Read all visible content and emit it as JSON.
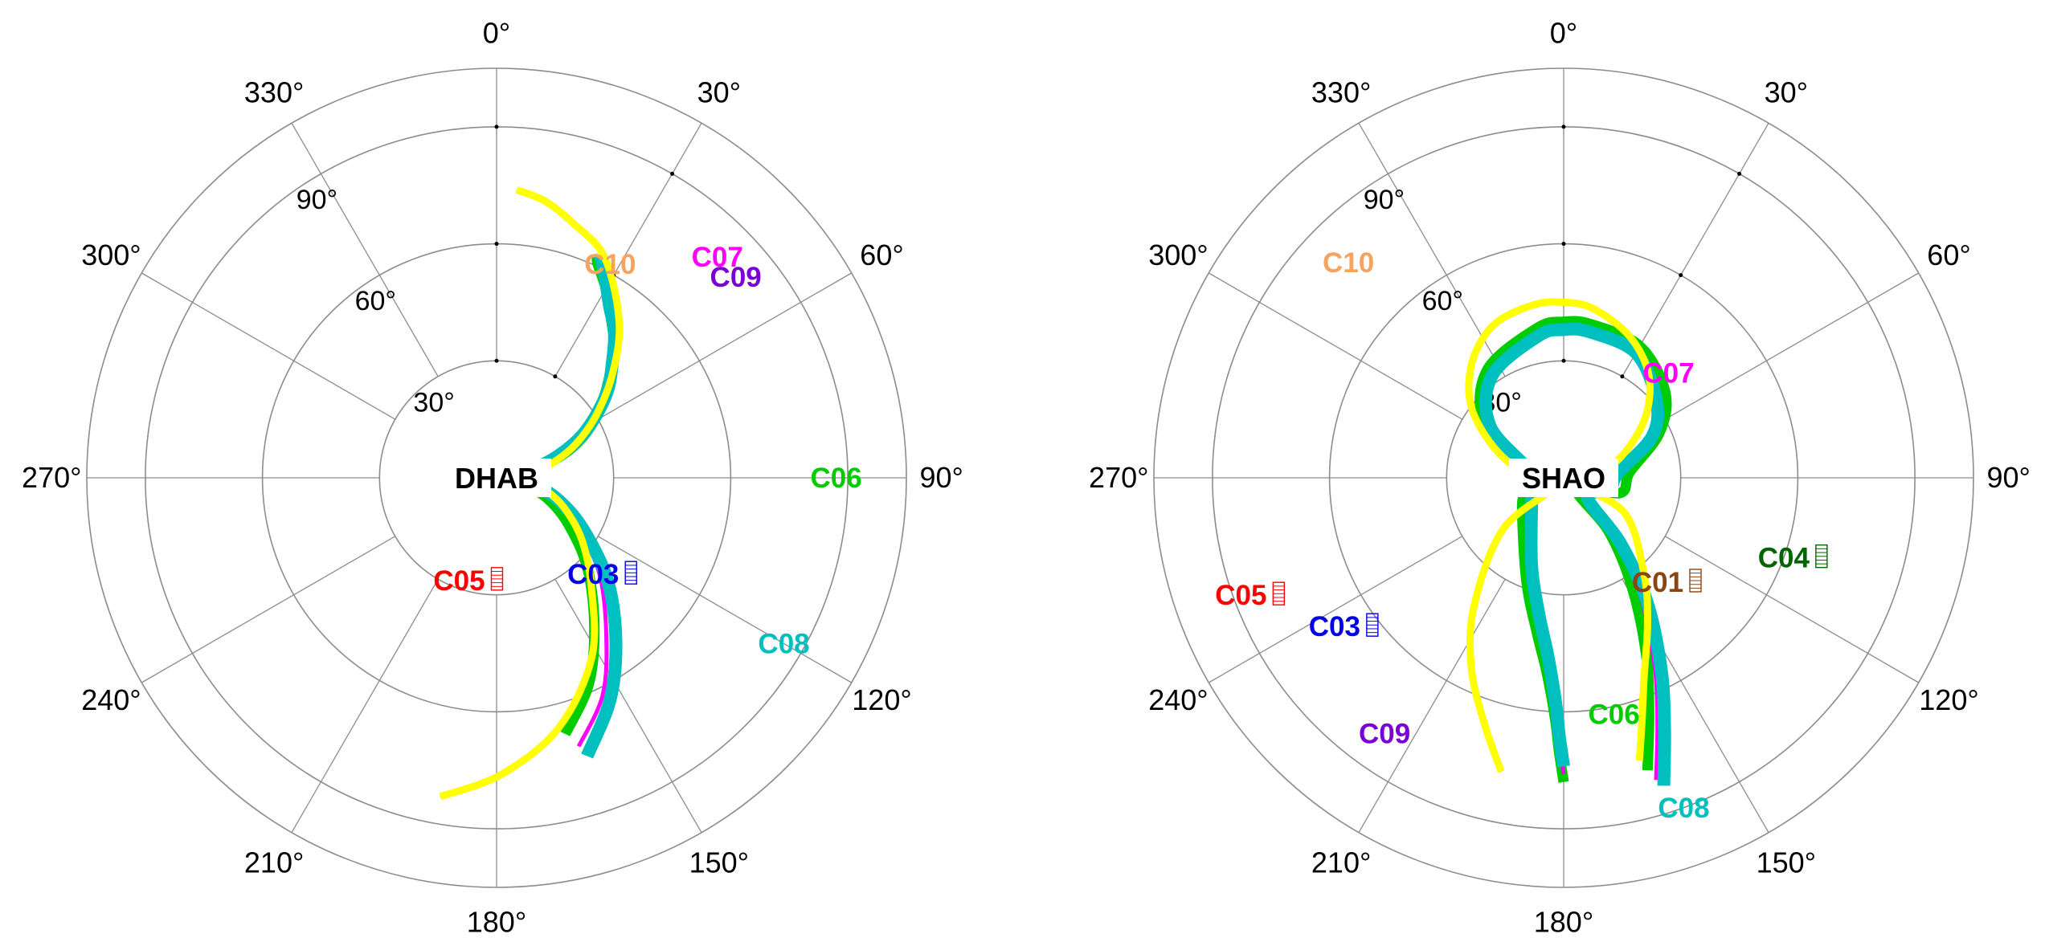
{
  "chart_data": [
    {
      "type": "polar-skyplot",
      "station": "DHAB",
      "angle_labels": [
        "0°",
        "30°",
        "60°",
        "90°",
        "120°",
        "150°",
        "180°",
        "210°",
        "240°",
        "270°",
        "300°",
        "330°"
      ],
      "radial_labels": [
        "30°",
        "60°",
        "90°"
      ],
      "satellites": [
        {
          "name": "C05",
          "color": "#ff0000",
          "position": {
            "az": 200,
            "el": 62
          },
          "marker": true
        },
        {
          "name": "C03",
          "color": "#0000e6",
          "position": {
            "az": 135,
            "el": 55
          },
          "marker": true
        },
        {
          "name": "C10",
          "color": "#f4a460",
          "label_at": {
            "az": 28,
            "el": 28
          }
        },
        {
          "name": "C09",
          "color": "#7b00d6",
          "label_at": {
            "az": 50,
            "el": 10
          }
        },
        {
          "name": "C07",
          "color": "#ff00ff",
          "label_at": {
            "az": 45,
            "el": 10
          }
        },
        {
          "name": "C06",
          "color": "#00cc00",
          "label_at": {
            "az": 90,
            "el": 3
          }
        },
        {
          "name": "C08",
          "color": "#00bfbf",
          "label_at": {
            "az": 120,
            "el": 5
          }
        }
      ],
      "traces": [
        {
          "name": "C06",
          "color": "#00cc00",
          "points": [
            [
              165,
              22
            ],
            [
              156,
              32
            ],
            [
              147,
              44
            ],
            [
              135,
              57
            ],
            [
              123,
              68
            ],
            [
              112,
              76
            ],
            [
              104,
              83
            ],
            [
              96,
              89
            ],
            [
              90,
              90
            ],
            [
              87,
              90
            ],
            [
              84,
              88
            ],
            [
              80,
              83
            ],
            [
              75,
              77
            ],
            [
              69,
              70
            ],
            [
              63,
              64
            ],
            [
              56,
              58
            ],
            [
              49,
              52
            ],
            [
              42,
              45
            ],
            [
              36,
              40
            ],
            [
              30,
              34
            ],
            [
              25,
              29
            ],
            [
              25,
              28
            ]
          ]
        },
        {
          "name": "C07",
          "color": "#ff00ff",
          "points": [
            [
              163,
              18
            ],
            [
              154,
              28
            ],
            [
              145,
              41
            ],
            [
              133,
              54
            ],
            [
              121,
              66
            ],
            [
              110,
              75
            ],
            [
              102,
              82
            ],
            [
              94,
              88
            ],
            [
              89,
              90
            ],
            [
              85,
              89
            ],
            [
              82,
              86
            ],
            [
              78,
              81
            ],
            [
              73,
              75
            ],
            [
              67,
              68
            ],
            [
              61,
              62
            ],
            [
              54,
              56
            ],
            [
              47,
              50
            ],
            [
              40,
              43
            ],
            [
              34,
              38
            ],
            [
              29,
              32
            ],
            [
              25,
              27
            ]
          ]
        },
        {
          "name": "C08",
          "color": "#00bfbf",
          "points": [
            [
              162,
              15
            ],
            [
              153,
              26
            ],
            [
              144,
              38
            ],
            [
              133,
              51
            ],
            [
              121,
              64
            ],
            [
              110,
              73
            ],
            [
              101,
              80
            ],
            [
              94,
              87
            ],
            [
              88,
              90
            ],
            [
              84,
              89
            ],
            [
              80,
              85
            ],
            [
              76,
              80
            ],
            [
              71,
              74
            ],
            [
              65,
              67
            ],
            [
              59,
              61
            ],
            [
              52,
              54
            ],
            [
              45,
              48
            ],
            [
              39,
              42
            ],
            [
              33,
              37
            ],
            [
              28,
              31
            ],
            [
              25,
              27
            ]
          ]
        },
        {
          "name": "C09",
          "color": "#7b00d6",
          "points": [
            [
              190,
              7
            ],
            [
              179,
              14
            ],
            [
              166,
              24
            ],
            [
              152,
              38
            ],
            [
              139,
              53
            ],
            [
              126,
              63
            ],
            [
              114,
              71
            ],
            [
              104,
              77
            ],
            [
              95,
              81
            ],
            [
              88,
              82
            ],
            [
              82,
              80
            ],
            [
              75,
              75
            ],
            [
              67,
              68
            ],
            [
              58,
              60
            ],
            [
              48,
              50
            ],
            [
              38,
              39
            ],
            [
              26,
              27
            ],
            [
              17,
              22
            ],
            [
              10,
              18
            ],
            [
              4,
              16
            ]
          ]
        },
        {
          "name": "C10",
          "color": "#ffff00",
          "points": [
            [
              190,
              7
            ],
            [
              179,
              14
            ],
            [
              166,
              24
            ],
            [
              152,
              38
            ],
            [
              139,
              53
            ],
            [
              126,
              63
            ],
            [
              114,
              71
            ],
            [
              104,
              77
            ],
            [
              95,
              81
            ],
            [
              88,
              82
            ],
            [
              82,
              80
            ],
            [
              75,
              75
            ],
            [
              67,
              68
            ],
            [
              58,
              60
            ],
            [
              48,
              50
            ],
            [
              38,
              39
            ],
            [
              26,
              27
            ],
            [
              17,
              22
            ],
            [
              10,
              18
            ],
            [
              4,
              16
            ]
          ]
        }
      ]
    },
    {
      "type": "polar-skyplot",
      "station": "SHAO",
      "angle_labels": [
        "0°",
        "30°",
        "60°",
        "90°",
        "120°",
        "150°",
        "180°",
        "210°",
        "240°",
        "270°",
        "300°",
        "330°"
      ],
      "radial_labels": [
        "30°",
        "60°",
        "90°"
      ],
      "satellites": [
        {
          "name": "C05",
          "color": "#ff0000",
          "position": {
            "az": 250,
            "el": 2
          },
          "marker": true
        },
        {
          "name": "C03",
          "color": "#0000e6",
          "position": {
            "az": 237,
            "el": 20
          },
          "marker": true
        },
        {
          "name": "C01",
          "color": "#8b4513",
          "position": {
            "az": 138,
            "el": 54
          },
          "marker": true
        },
        {
          "name": "C04",
          "color": "#006400",
          "position": {
            "az": 110,
            "el": 30
          },
          "marker": true
        },
        {
          "name": "C10",
          "color": "#f4a460",
          "label_at": {
            "az": 315,
            "el": 12
          }
        },
        {
          "name": "C09",
          "color": "#7b00d6",
          "label_at": {
            "az": 215,
            "el": 10
          }
        },
        {
          "name": "C07",
          "color": "#ff00ff",
          "label_at": {
            "az": 45,
            "el": 52
          }
        },
        {
          "name": "C06",
          "color": "#00cc00",
          "label_at": {
            "az": 168,
            "el": 28
          }
        },
        {
          "name": "C08",
          "color": "#00bfbf",
          "label_at": {
            "az": 160,
            "el": 0
          }
        }
      ],
      "traces": [
        {
          "name": "C06",
          "color": "#00cc00",
          "points": [
            [
              164,
              12
            ],
            [
              160,
              26
            ],
            [
              155,
              40
            ],
            [
              148,
              57
            ],
            [
              140,
              72
            ],
            [
              130,
              86
            ],
            [
              105,
              75
            ],
            [
              85,
              73
            ],
            [
              65,
              63
            ],
            [
              50,
              56
            ],
            [
              30,
              51
            ],
            [
              10,
              50
            ],
            [
              0,
              50
            ],
            [
              -10,
              51
            ],
            [
              -35,
              56
            ],
            [
              -55,
              65
            ],
            [
              -85,
              80
            ],
            [
              -125,
              77
            ],
            [
              -160,
              62
            ],
            [
              -170,
              50
            ],
            [
              -175,
              40
            ],
            [
              -178,
              28
            ],
            [
              -179,
              20
            ],
            [
              -180,
              12
            ]
          ]
        },
        {
          "name": "C07",
          "color": "#ff00ff",
          "points": [
            [
              163,
              9
            ],
            [
              159,
              23
            ],
            [
              154,
              37
            ],
            [
              147,
              54
            ],
            [
              140,
              70
            ],
            [
              130,
              84
            ],
            [
              105,
              77
            ],
            [
              85,
              75
            ],
            [
              65,
              64
            ],
            [
              50,
              58
            ],
            [
              30,
              52
            ],
            [
              10,
              51
            ],
            [
              0,
              51
            ],
            [
              -10,
              52
            ],
            [
              -35,
              57
            ],
            [
              -55,
              66
            ],
            [
              -85,
              81
            ],
            [
              -125,
              79
            ],
            [
              -160,
              64
            ],
            [
              -170,
              52
            ],
            [
              -175,
              42
            ],
            [
              -178,
              30
            ],
            [
              -179,
              22
            ],
            [
              -180,
              14
            ]
          ]
        },
        {
          "name": "C08",
          "color": "#00bfbf",
          "points": [
            [
              162,
              7
            ],
            [
              158,
              21
            ],
            [
              153,
              35
            ],
            [
              146,
              52
            ],
            [
              139,
              68
            ],
            [
              130,
              82
            ],
            [
              105,
              78
            ],
            [
              85,
              76
            ],
            [
              65,
              65
            ],
            [
              50,
              59
            ],
            [
              30,
              53
            ],
            [
              10,
              52
            ],
            [
              0,
              52
            ],
            [
              -10,
              53
            ],
            [
              -35,
              58
            ],
            [
              -55,
              67
            ],
            [
              -85,
              82
            ],
            [
              -125,
              80
            ],
            [
              -160,
              66
            ],
            [
              -170,
              54
            ],
            [
              -175,
              44
            ],
            [
              -178,
              32
            ],
            [
              -179,
              24
            ],
            [
              -180,
              16
            ]
          ]
        },
        {
          "name": "C09",
          "color": "#7b00d6",
          "points": [
            [
              -168,
              13
            ],
            [
              -162,
              24
            ],
            [
              -154,
              36
            ],
            [
              -145,
              50
            ],
            [
              -130,
              70
            ],
            [
              -100,
              90
            ],
            [
              -75,
              76
            ],
            [
              -55,
              62
            ],
            [
              -40,
              53
            ],
            [
              -25,
              47
            ],
            [
              -10,
              45
            ],
            [
              0,
              45
            ],
            [
              10,
              46
            ],
            [
              25,
              50
            ],
            [
              40,
              56
            ],
            [
              55,
              65
            ],
            [
              75,
              77
            ],
            [
              100,
              88
            ],
            [
              120,
              72
            ],
            [
              140,
              58
            ],
            [
              150,
              47
            ],
            [
              158,
              35
            ],
            [
              162,
              25
            ],
            [
              165,
              15
            ]
          ]
        },
        {
          "name": "C10",
          "color": "#ffff00",
          "points": [
            [
              -168,
              13
            ],
            [
              -162,
              24
            ],
            [
              -154,
              36
            ],
            [
              -145,
              50
            ],
            [
              -130,
              70
            ],
            [
              -100,
              90
            ],
            [
              -75,
              76
            ],
            [
              -55,
              62
            ],
            [
              -40,
              53
            ],
            [
              -25,
              47
            ],
            [
              -10,
              45
            ],
            [
              0,
              45
            ],
            [
              10,
              46
            ],
            [
              25,
              50
            ],
            [
              40,
              56
            ],
            [
              55,
              65
            ],
            [
              75,
              77
            ],
            [
              100,
              88
            ],
            [
              120,
              72
            ],
            [
              140,
              58
            ],
            [
              150,
              47
            ],
            [
              158,
              35
            ],
            [
              162,
              25
            ],
            [
              165,
              15
            ]
          ]
        }
      ]
    }
  ]
}
